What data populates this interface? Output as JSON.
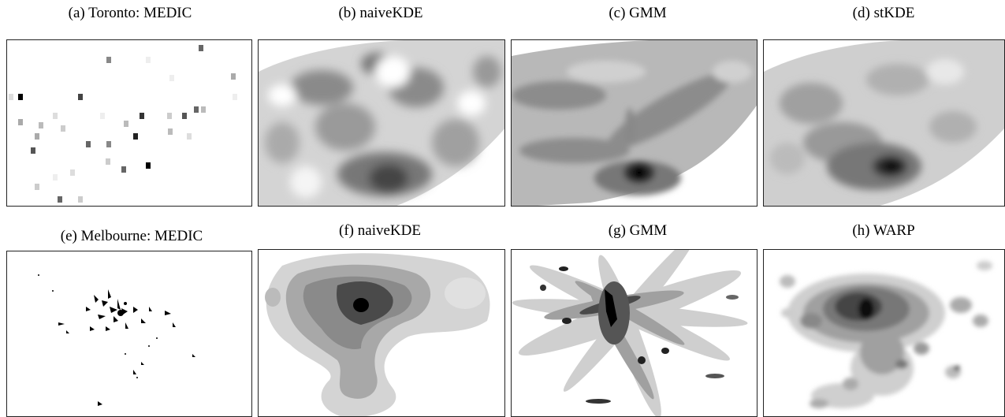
{
  "figure": {
    "row1": {
      "captions": [
        "(a) Toronto: MEDIC",
        "(b) naiveKDE",
        "(c) GMM",
        "(d) stKDE"
      ]
    },
    "row2": {
      "captions": [
        "(e) Melbourne: MEDIC",
        "(f) naiveKDE",
        "(g) GMM",
        "(h) WARP"
      ]
    }
  },
  "colors": {
    "level1": "#e2e2e2",
    "level2": "#c4c4c4",
    "level3": "#a6a6a6",
    "level4": "#888888",
    "level5": "#6a6a6a",
    "level6": "#4c4c4c",
    "level7": "#2a2a2a",
    "level8": "#000000"
  }
}
